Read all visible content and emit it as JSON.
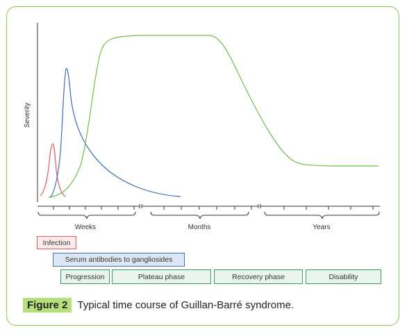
{
  "diagram": {
    "y_axis_label": "Severity",
    "time_sections": [
      "Weeks",
      "Months",
      "Years"
    ],
    "curves": [
      {
        "name": "infection",
        "color": "#e05a5a"
      },
      {
        "name": "antibodies",
        "color": "#3b6db3"
      },
      {
        "name": "severity",
        "color": "#6dbf4b"
      }
    ],
    "phases": {
      "infection": "Infection",
      "antibodies": "Serum antibodies to gangliosides",
      "progression": "Progression",
      "plateau": "Plateau phase",
      "recovery": "Recovery phase",
      "disability": "Disability"
    }
  },
  "caption": {
    "label": "Figure 2",
    "text": "Typical time course of Guillan-Barré syndrome."
  }
}
